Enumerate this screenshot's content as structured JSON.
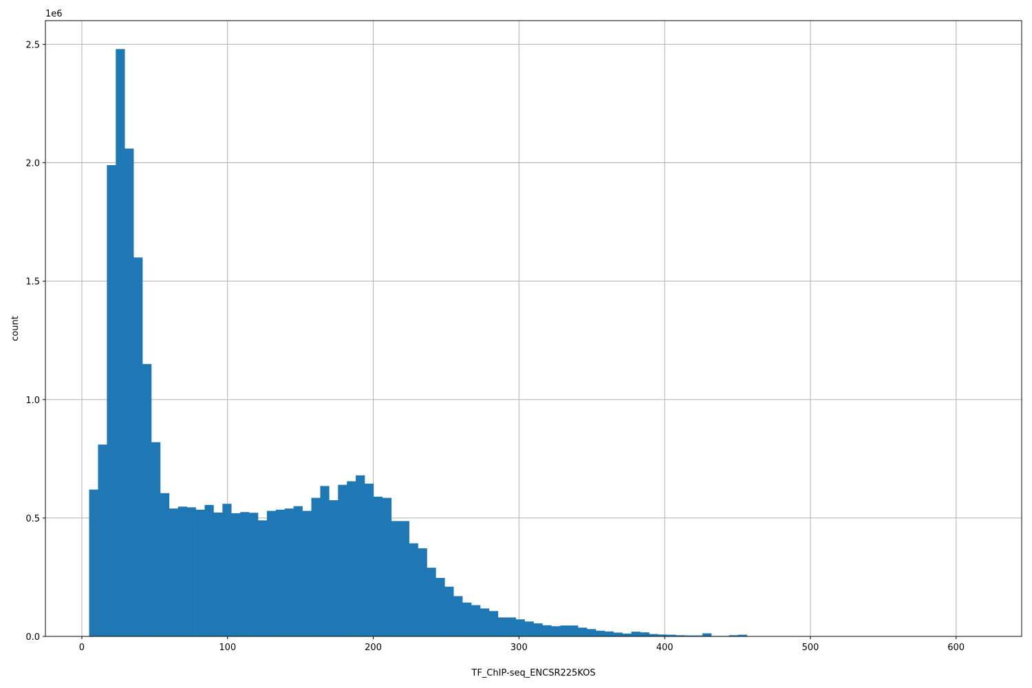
{
  "chart_data": {
    "type": "bar",
    "title": "",
    "xlabel": "TF_ChIP-seq_ENCSR225KOS",
    "ylabel": "count",
    "y_offset_label": "1e6",
    "xlim": [
      -25,
      645
    ],
    "ylim": [
      0,
      2.6
    ],
    "y_scale_multiplier": 1000000,
    "grid": true,
    "color": "#1f77b4",
    "x_ticks": [
      0,
      100,
      200,
      300,
      400,
      500,
      600
    ],
    "x_tick_labels": [
      "0",
      "100",
      "200",
      "300",
      "400",
      "500",
      "600"
    ],
    "y_ticks": [
      0.0,
      0.5,
      1.0,
      1.5,
      2.0,
      2.5
    ],
    "y_tick_labels": [
      "0.0",
      "0.5",
      "1.0",
      "1.5",
      "2.0",
      "2.5"
    ],
    "bin_start": 5,
    "bin_width": 6.1,
    "values": [
      0.62,
      0.81,
      1.99,
      2.48,
      2.06,
      1.6,
      1.15,
      0.82,
      0.605,
      0.54,
      0.548,
      0.545,
      0.535,
      0.555,
      0.523,
      0.56,
      0.52,
      0.525,
      0.522,
      0.49,
      0.53,
      0.535,
      0.54,
      0.55,
      0.53,
      0.585,
      0.635,
      0.575,
      0.64,
      0.655,
      0.68,
      0.645,
      0.59,
      0.585,
      0.487,
      0.487,
      0.393,
      0.372,
      0.29,
      0.247,
      0.21,
      0.17,
      0.143,
      0.132,
      0.118,
      0.107,
      0.08,
      0.08,
      0.072,
      0.063,
      0.055,
      0.047,
      0.043,
      0.046,
      0.046,
      0.037,
      0.031,
      0.024,
      0.021,
      0.016,
      0.012,
      0.02,
      0.017,
      0.01,
      0.008,
      0.007,
      0.005,
      0.004,
      0.004,
      0.013,
      0.002,
      0.002,
      0.005,
      0.007,
      0.001,
      0.0005,
      0.0003,
      0.0002,
      0.0002,
      0.0001,
      0.0001,
      0.0001,
      0.0001,
      0.0001,
      0.0001,
      0.0001,
      0.0001,
      0.0001,
      0.0001,
      0.0001,
      0.0001,
      0.0001,
      0.0001,
      0.0001,
      0.0001,
      0.0001,
      0.0001,
      0.0001,
      0.0001,
      0.0001
    ]
  }
}
